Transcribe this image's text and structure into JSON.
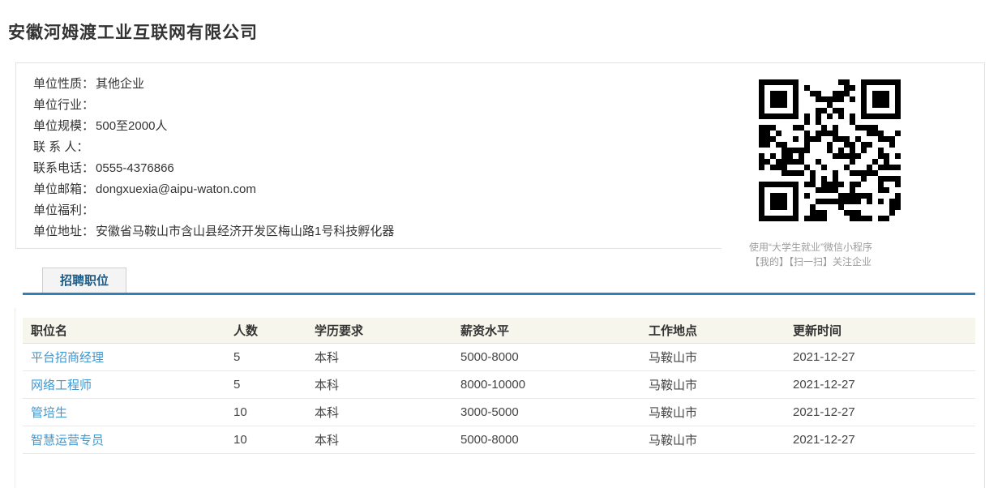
{
  "page": {
    "title": "安徽河姆渡工业互联网有限公司"
  },
  "company_info": {
    "fields": [
      {
        "label": "单位性质：",
        "value": "其他企业"
      },
      {
        "label": "单位行业：",
        "value": ""
      },
      {
        "label": "单位规模：",
        "value": "500至2000人"
      },
      {
        "label": "联 系 人：",
        "value": ""
      },
      {
        "label": "联系电话：",
        "value": "0555-4376866"
      },
      {
        "label": "单位邮箱：",
        "value": "dongxuexia@aipu-waton.com"
      },
      {
        "label": "单位福利：",
        "value": ""
      },
      {
        "label": "单位地址：",
        "value": "安徽省马鞍山市含山县经济开发区梅山路1号科技孵化器"
      }
    ],
    "qr_caption_line1": "使用“大学生就业”微信小程序",
    "qr_caption_line2": "【我的】【扫一扫】关注企业"
  },
  "tabs": {
    "active": "招聘职位"
  },
  "jobs_table": {
    "columns": [
      "职位名",
      "人数",
      "学历要求",
      "薪资水平",
      "工作地点",
      "更新时间"
    ],
    "rows": [
      {
        "name": "平台招商经理",
        "count": "5",
        "education": "本科",
        "salary": "5000-8000",
        "location": "马鞍山市",
        "updated": "2021-12-27"
      },
      {
        "name": "网络工程师",
        "count": "5",
        "education": "本科",
        "salary": "8000-10000",
        "location": "马鞍山市",
        "updated": "2021-12-27"
      },
      {
        "name": "管培生",
        "count": "10",
        "education": "本科",
        "salary": "3000-5000",
        "location": "马鞍山市",
        "updated": "2021-12-27"
      },
      {
        "name": "智慧运营专员",
        "count": "10",
        "education": "本科",
        "salary": "5000-8000",
        "location": "马鞍山市",
        "updated": "2021-12-27"
      }
    ]
  },
  "colors": {
    "accent_blue": "#3181b8",
    "link_blue": "#3e97d0",
    "tab_text_blue": "#1c5a86",
    "table_header_bg": "#f6f6ec"
  }
}
